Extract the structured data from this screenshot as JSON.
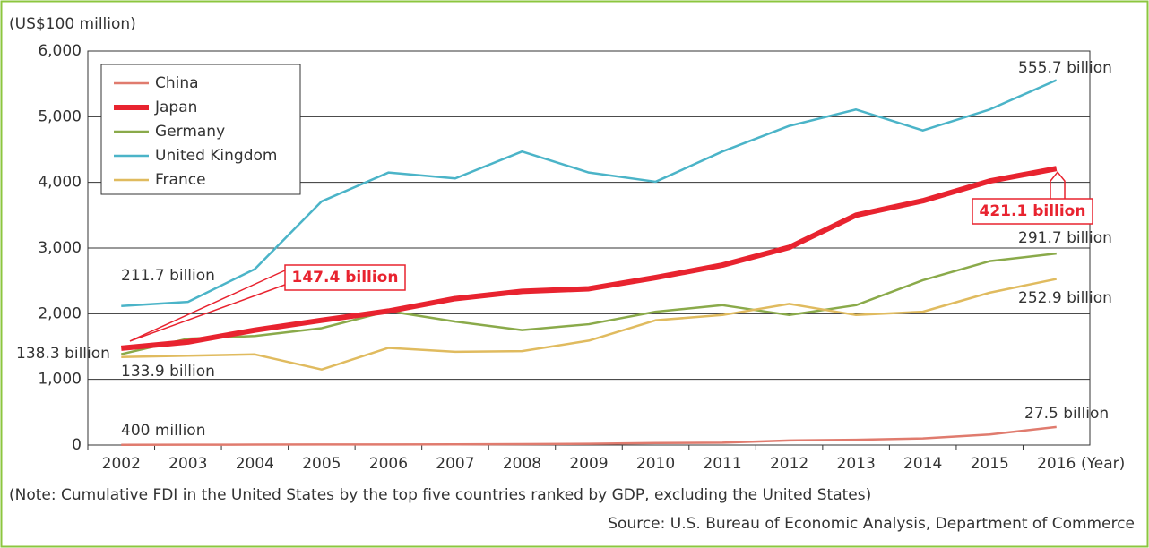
{
  "chart_data": {
    "type": "line",
    "y_axis_label": "(US$100 million)",
    "x_axis_label": "(Year)",
    "categories": [
      "2002",
      "2003",
      "2004",
      "2005",
      "2006",
      "2007",
      "2008",
      "2009",
      "2010",
      "2011",
      "2012",
      "2013",
      "2014",
      "2015",
      "2016"
    ],
    "series": [
      {
        "name": "China",
        "color": "#e07b6e",
        "values": [
          4,
          5,
          6,
          8,
          9,
          10,
          14,
          18,
          30,
          36,
          70,
          80,
          100,
          160,
          275
        ]
      },
      {
        "name": "Japan",
        "color": "#e8232f",
        "values": [
          1474,
          1570,
          1750,
          1900,
          2040,
          2230,
          2340,
          2380,
          2550,
          2740,
          3010,
          3500,
          3720,
          4020,
          4211
        ]
      },
      {
        "name": "Germany",
        "color": "#8aaa4a",
        "values": [
          1383,
          1620,
          1660,
          1780,
          2040,
          1880,
          1750,
          1840,
          2030,
          2130,
          1980,
          2130,
          2510,
          2800,
          2917
        ]
      },
      {
        "name": "United Kingdom",
        "color": "#4bb4c8",
        "values": [
          2117,
          2180,
          2680,
          3710,
          4150,
          4060,
          4470,
          4150,
          4010,
          4470,
          4860,
          5110,
          4790,
          5110,
          5557
        ]
      },
      {
        "name": "France",
        "color": "#e0bb5f",
        "values": [
          1339,
          1360,
          1380,
          1150,
          1480,
          1420,
          1430,
          1590,
          1900,
          1980,
          2150,
          1980,
          2030,
          2320,
          2529
        ]
      }
    ],
    "ylim": [
      0,
      6000
    ],
    "yticks": [
      0,
      {
        "value": 1000,
        "label": "1,000"
      },
      {
        "value": 2000,
        "label": "2,000"
      },
      {
        "value": 3000,
        "label": "3,000"
      },
      {
        "value": 4000,
        "label": "4,000"
      },
      {
        "value": 5000,
        "label": "5,000"
      },
      {
        "value": 6000,
        "label": "6,000"
      }
    ],
    "grid": true,
    "legend": "upper left",
    "annotations": [
      "211.7 billion",
      "138.3 billion",
      "133.9 billion",
      "400 million",
      "147.4 billion",
      "421.1 billion",
      "555.7 billion",
      "291.7 billion",
      "252.9 billion",
      "27.5 billion"
    ],
    "note": "(Note: Cumulative FDI in the United States by the top five countries ranked by GDP, excluding the United States)",
    "source": "Source: U.S. Bureau of Economic Analysis, Department of Commerce"
  }
}
